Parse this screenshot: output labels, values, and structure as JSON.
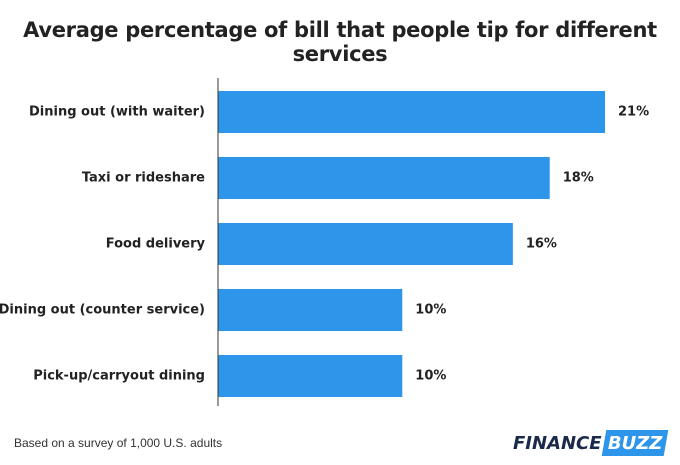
{
  "chart_data": {
    "type": "bar",
    "orientation": "horizontal",
    "title": "Average percentage of bill that people tip for different services",
    "categories": [
      "Dining out (with waiter)",
      "Taxi or rideshare",
      "Food delivery",
      "Dining out (counter service)",
      "Pick-up/carryout dining"
    ],
    "values": [
      21,
      18,
      16,
      10,
      10
    ],
    "value_labels": [
      "21%",
      "18%",
      "16%",
      "10%",
      "10%"
    ],
    "unit": "%",
    "xlim": [
      0,
      21
    ],
    "xlabel": "",
    "ylabel": "",
    "grid": false,
    "bar_color": "#2e96ea"
  },
  "footnote": "Based on a survey of 1,000 U.S. adults",
  "brand": {
    "part1": "FINANCE",
    "part2": "BUZZ",
    "dark_color": "#1a2b4a",
    "accent_color": "#2e96ea"
  }
}
